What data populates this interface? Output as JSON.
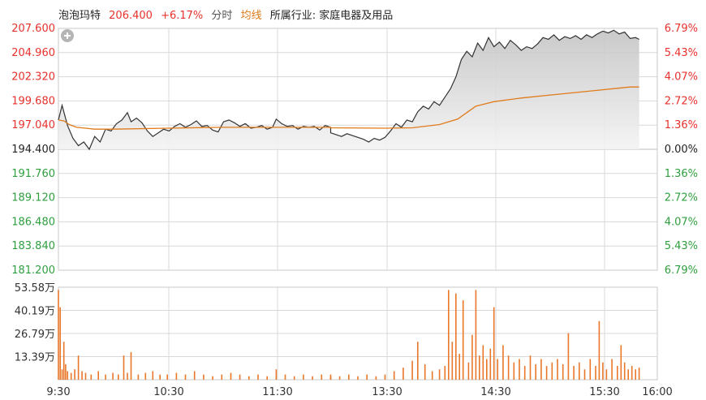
{
  "header": {
    "stock_name": "泡泡玛特",
    "price": "206.400",
    "change_pct": "+6.17%",
    "mode_label": "分时",
    "avg_label": "均线",
    "industry_label": "所属行业: 家庭电器及用品"
  },
  "colors": {
    "up": "#e8312d",
    "down": "#2e9f3e",
    "price_line": "#333333",
    "avg_line": "#e07a1a",
    "volume_bar": "#e8772a",
    "area_fill": "#cfcfcf",
    "grid": "#d8d8d8"
  },
  "chart_data": [
    {
      "type": "line",
      "title": "",
      "prev_close": 194.4,
      "ylim": [
        181.2,
        207.6
      ],
      "y_ticks_left": [
        "207.600",
        "204.960",
        "202.320",
        "199.680",
        "197.040",
        "194.400",
        "191.760",
        "189.120",
        "186.480",
        "183.840",
        "181.200"
      ],
      "y_ticks_right": [
        "6.79%",
        "5.43%",
        "4.07%",
        "2.72%",
        "1.36%",
        "0.00%",
        "1.36%",
        "2.72%",
        "4.07%",
        "5.43%",
        "6.79%"
      ],
      "x_ticks": [
        "9:30",
        "10:30",
        "11:30",
        "13:30",
        "14:30",
        "15:30",
        "16:00"
      ],
      "series": [
        {
          "name": "",
          "role": "price",
          "points": [
            [
              "9:30",
              197.6
            ],
            [
              "9:32",
              199.2
            ],
            [
              "9:35",
              197.0
            ],
            [
              "9:38",
              195.6
            ],
            [
              "9:41",
              194.8
            ],
            [
              "9:44",
              195.2
            ],
            [
              "9:47",
              194.4
            ],
            [
              "9:50",
              195.8
            ],
            [
              "9:53",
              195.2
            ],
            [
              "9:56",
              196.6
            ],
            [
              "9:59",
              196.4
            ],
            [
              "10:02",
              197.2
            ],
            [
              "10:05",
              197.6
            ],
            [
              "10:08",
              198.4
            ],
            [
              "10:10",
              197.4
            ],
            [
              "10:13",
              197.8
            ],
            [
              "10:16",
              197.3
            ],
            [
              "10:19",
              196.4
            ],
            [
              "10:22",
              195.8
            ],
            [
              "10:25",
              196.2
            ],
            [
              "10:28",
              196.6
            ],
            [
              "10:31",
              196.4
            ],
            [
              "10:34",
              196.9
            ],
            [
              "10:37",
              197.2
            ],
            [
              "10:40",
              196.8
            ],
            [
              "10:43",
              197.1
            ],
            [
              "10:46",
              197.5
            ],
            [
              "10:49",
              196.9
            ],
            [
              "10:52",
              197.0
            ],
            [
              "10:55",
              196.5
            ],
            [
              "10:58",
              196.3
            ],
            [
              "11:01",
              197.4
            ],
            [
              "11:04",
              197.6
            ],
            [
              "11:07",
              197.3
            ],
            [
              "11:10",
              196.9
            ],
            [
              "11:13",
              197.2
            ],
            [
              "11:16",
              196.7
            ],
            [
              "11:19",
              196.8
            ],
            [
              "11:22",
              197.0
            ],
            [
              "11:25",
              196.6
            ],
            [
              "11:28",
              196.8
            ],
            [
              "11:30",
              197.7
            ],
            [
              "11:33",
              197.2
            ],
            [
              "11:36",
              196.9
            ],
            [
              "11:39",
              197.0
            ],
            [
              "11:42",
              196.6
            ],
            [
              "11:45",
              196.9
            ],
            [
              "11:48",
              196.8
            ],
            [
              "11:51",
              196.9
            ],
            [
              "11:54",
              196.5
            ],
            [
              "11:57",
              197.0
            ],
            [
              "12:00",
              196.8
            ],
            [
              "13:00",
              196.2
            ],
            [
              "13:03",
              196.0
            ],
            [
              "13:06",
              195.8
            ],
            [
              "13:09",
              196.1
            ],
            [
              "13:12",
              195.9
            ],
            [
              "13:15",
              195.7
            ],
            [
              "13:18",
              195.5
            ],
            [
              "13:21",
              195.2
            ],
            [
              "13:24",
              195.6
            ],
            [
              "13:27",
              195.4
            ],
            [
              "13:30",
              195.7
            ],
            [
              "13:33",
              196.4
            ],
            [
              "13:36",
              197.2
            ],
            [
              "13:39",
              196.8
            ],
            [
              "13:42",
              197.6
            ],
            [
              "13:45",
              197.4
            ],
            [
              "13:48",
              198.5
            ],
            [
              "13:51",
              199.1
            ],
            [
              "13:54",
              198.8
            ],
            [
              "13:57",
              199.6
            ],
            [
              "14:00",
              199.2
            ],
            [
              "14:03",
              200.1
            ],
            [
              "14:06",
              201.0
            ],
            [
              "14:09",
              202.3
            ],
            [
              "14:12",
              204.2
            ],
            [
              "14:15",
              205.1
            ],
            [
              "14:18",
              204.5
            ],
            [
              "14:21",
              206.0
            ],
            [
              "14:24",
              205.2
            ],
            [
              "14:27",
              206.6
            ],
            [
              "14:30",
              205.6
            ],
            [
              "14:33",
              206.1
            ],
            [
              "14:36",
              205.4
            ],
            [
              "14:39",
              206.3
            ],
            [
              "14:42",
              205.8
            ],
            [
              "14:45",
              205.2
            ],
            [
              "14:48",
              205.6
            ],
            [
              "14:51",
              205.4
            ],
            [
              "14:54",
              205.9
            ],
            [
              "14:57",
              206.6
            ],
            [
              "15:00",
              206.4
            ],
            [
              "15:03",
              206.9
            ],
            [
              "15:06",
              206.3
            ],
            [
              "15:09",
              206.7
            ],
            [
              "15:12",
              206.5
            ],
            [
              "15:15",
              206.8
            ],
            [
              "15:18",
              206.4
            ],
            [
              "15:21",
              206.9
            ],
            [
              "15:24",
              206.6
            ],
            [
              "15:27",
              207.0
            ],
            [
              "15:30",
              207.3
            ],
            [
              "15:33",
              207.1
            ],
            [
              "15:36",
              207.4
            ],
            [
              "15:39",
              207.0
            ],
            [
              "15:42",
              207.2
            ],
            [
              "15:45",
              206.5
            ],
            [
              "15:48",
              206.6
            ],
            [
              "15:50",
              206.4
            ]
          ]
        },
        {
          "name": "均线",
          "role": "average",
          "points": [
            [
              "9:30",
              197.6
            ],
            [
              "9:33",
              197.5
            ],
            [
              "9:36",
              197.1
            ],
            [
              "9:40",
              196.8
            ],
            [
              "9:45",
              196.7
            ],
            [
              "9:50",
              196.6
            ],
            [
              "10:00",
              196.6
            ],
            [
              "10:30",
              196.7
            ],
            [
              "11:00",
              196.8
            ],
            [
              "11:30",
              196.8
            ],
            [
              "12:00",
              196.8
            ],
            [
              "13:00",
              196.75
            ],
            [
              "13:30",
              196.7
            ],
            [
              "13:45",
              196.75
            ],
            [
              "14:00",
              197.1
            ],
            [
              "14:10",
              197.7
            ],
            [
              "14:15",
              198.4
            ],
            [
              "14:20",
              199.1
            ],
            [
              "14:30",
              199.6
            ],
            [
              "14:45",
              200.0
            ],
            [
              "15:00",
              200.3
            ],
            [
              "15:15",
              200.6
            ],
            [
              "15:30",
              200.9
            ],
            [
              "15:45",
              201.2
            ],
            [
              "15:50",
              201.2
            ]
          ]
        }
      ]
    },
    {
      "type": "bar",
      "title": "",
      "ylim": [
        0,
        53.58
      ],
      "y_ticks": [
        "53.58万",
        "40.19万",
        "26.79万",
        "13.39万"
      ],
      "unit": "万",
      "series": [
        {
          "name": "",
          "points": [
            [
              "9:30",
              52
            ],
            [
              "9:31",
              42
            ],
            [
              "9:32",
              6
            ],
            [
              "9:33",
              22
            ],
            [
              "9:34",
              9
            ],
            [
              "9:35",
              5
            ],
            [
              "9:37",
              4
            ],
            [
              "9:39",
              6
            ],
            [
              "9:41",
              14
            ],
            [
              "9:43",
              5
            ],
            [
              "9:45",
              4
            ],
            [
              "9:48",
              3
            ],
            [
              "9:52",
              5
            ],
            [
              "9:56",
              3
            ],
            [
              "10:00",
              4
            ],
            [
              "10:03",
              3
            ],
            [
              "10:06",
              14
            ],
            [
              "10:08",
              4
            ],
            [
              "10:10",
              16
            ],
            [
              "10:14",
              3
            ],
            [
              "10:18",
              4
            ],
            [
              "10:22",
              5
            ],
            [
              "10:26",
              3
            ],
            [
              "10:30",
              3
            ],
            [
              "10:35",
              4
            ],
            [
              "10:40",
              3
            ],
            [
              "10:45",
              5
            ],
            [
              "10:50",
              3
            ],
            [
              "10:55",
              2
            ],
            [
              "11:00",
              3
            ],
            [
              "11:05",
              4
            ],
            [
              "11:10",
              3
            ],
            [
              "11:15",
              2
            ],
            [
              "11:20",
              3
            ],
            [
              "11:25",
              2
            ],
            [
              "11:30",
              6
            ],
            [
              "11:35",
              3
            ],
            [
              "11:40",
              2
            ],
            [
              "11:45",
              3
            ],
            [
              "11:50",
              2
            ],
            [
              "11:55",
              3
            ],
            [
              "12:00",
              2
            ],
            [
              "13:00",
              3
            ],
            [
              "13:05",
              2
            ],
            [
              "13:10",
              3
            ],
            [
              "13:15",
              2
            ],
            [
              "13:20",
              3
            ],
            [
              "13:25",
              2
            ],
            [
              "13:30",
              3
            ],
            [
              "13:35",
              5
            ],
            [
              "13:40",
              7
            ],
            [
              "13:45",
              11
            ],
            [
              "13:48",
              22
            ],
            [
              "13:52",
              9
            ],
            [
              "13:56",
              5
            ],
            [
              "14:00",
              6
            ],
            [
              "14:03",
              8
            ],
            [
              "14:05",
              52
            ],
            [
              "14:07",
              22
            ],
            [
              "14:09",
              50
            ],
            [
              "14:11",
              15
            ],
            [
              "14:13",
              46
            ],
            [
              "14:16",
              10
            ],
            [
              "14:18",
              26
            ],
            [
              "14:20",
              52
            ],
            [
              "14:22",
              14
            ],
            [
              "14:24",
              20
            ],
            [
              "14:26",
              12
            ],
            [
              "14:28",
              18
            ],
            [
              "14:30",
              42
            ],
            [
              "14:32",
              12
            ],
            [
              "14:35",
              20
            ],
            [
              "14:38",
              14
            ],
            [
              "14:41",
              10
            ],
            [
              "14:44",
              12
            ],
            [
              "14:47",
              8
            ],
            [
              "14:50",
              14
            ],
            [
              "14:53",
              9
            ],
            [
              "14:56",
              12
            ],
            [
              "14:59",
              8
            ],
            [
              "15:02",
              10
            ],
            [
              "15:05",
              12
            ],
            [
              "15:08",
              9
            ],
            [
              "15:11",
              27
            ],
            [
              "15:14",
              8
            ],
            [
              "15:17",
              10
            ],
            [
              "15:20",
              6
            ],
            [
              "15:23",
              12
            ],
            [
              "15:26",
              8
            ],
            [
              "15:28",
              34
            ],
            [
              "15:30",
              10
            ],
            [
              "15:32",
              6
            ],
            [
              "15:35",
              12
            ],
            [
              "15:38",
              8
            ],
            [
              "15:40",
              20
            ],
            [
              "15:42",
              10
            ],
            [
              "15:44",
              6
            ],
            [
              "15:46",
              8
            ],
            [
              "15:48",
              6
            ],
            [
              "15:50",
              7
            ]
          ]
        }
      ]
    }
  ]
}
